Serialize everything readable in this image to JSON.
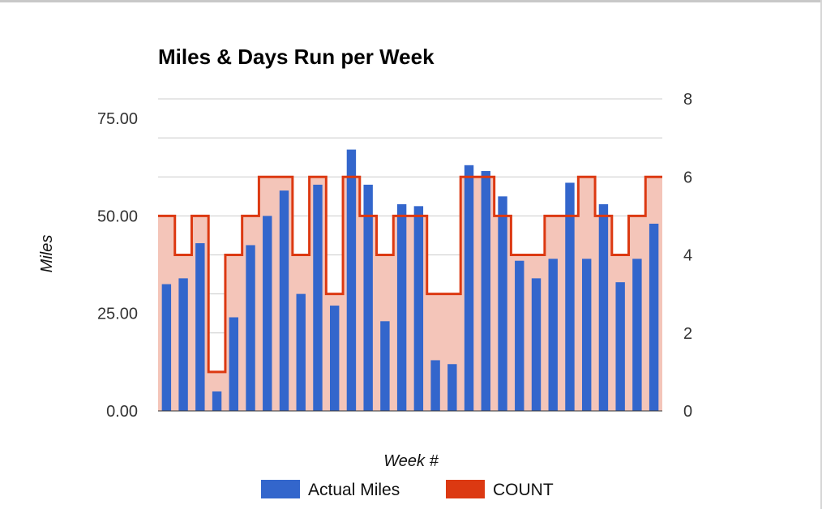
{
  "chart_data": {
    "type": "bar",
    "title": "Miles & Days Run per Week",
    "xlabel": "Week #",
    "ylabel": "Miles",
    "y_left": {
      "ticks": [
        "0.00",
        "25.00",
        "50.00",
        "75.00"
      ],
      "range": [
        0,
        80
      ]
    },
    "y_right": {
      "ticks": [
        "0",
        "2",
        "4",
        "6",
        "8"
      ],
      "range": [
        0,
        8
      ]
    },
    "grid": true,
    "legend_position": "bottom",
    "series": [
      {
        "name": "Actual Miles",
        "type": "bar",
        "axis": "left",
        "color": "#3366cc",
        "values": [
          32.5,
          34,
          43,
          5,
          24,
          42.5,
          50,
          56.5,
          30,
          58,
          27,
          67,
          58,
          23,
          53,
          52.5,
          13,
          12,
          63,
          61.5,
          55,
          38.5,
          34,
          39,
          58.5,
          39,
          53,
          33,
          39,
          48
        ]
      },
      {
        "name": "COUNT",
        "type": "stepped-area",
        "axis": "right",
        "color": "#dc3912",
        "fill": "#f4c5b9",
        "values": [
          5,
          4,
          5,
          1,
          4,
          5,
          6,
          6,
          4,
          6,
          3,
          6,
          5,
          4,
          5,
          5,
          3,
          3,
          6,
          6,
          5,
          4,
          4,
          5,
          5,
          6,
          5,
          4,
          5,
          6
        ]
      }
    ]
  }
}
